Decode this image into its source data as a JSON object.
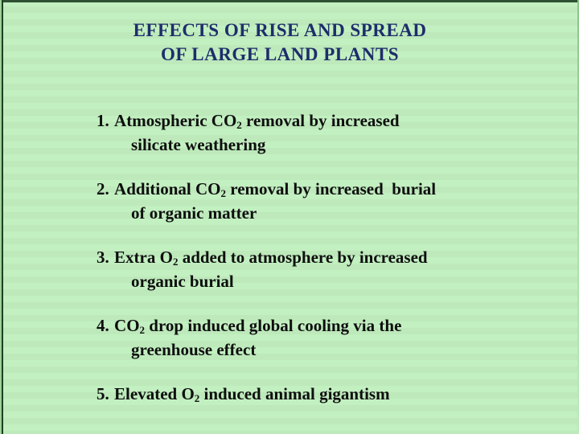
{
  "slide": {
    "title_line1": "EFFECTS OF RISE AND SPREAD",
    "title_line2": "OF LARGE LAND PLANTS",
    "colors": {
      "background": "#c1eebf",
      "top_border": "#2e4f32",
      "left_border_line": "#203e23",
      "title_text": "#1e2d6b",
      "body_text": "#0e0e0e"
    }
  },
  "items": [
    {
      "num": "1.",
      "pre": "Atmospheric CO",
      "sub": "2",
      "post": " removal by increased",
      "line2": "silicate weathering"
    },
    {
      "num": "2.",
      "pre": "Additional CO",
      "sub": "2",
      "post": " removal by increased  burial",
      "line2": "of organic matter"
    },
    {
      "num": "3.",
      "pre": "Extra O",
      "sub": "2",
      "post": " added to atmosphere by increased",
      "line2": "organic burial"
    },
    {
      "num": "4.",
      "pre": "CO",
      "sub": "2",
      "post": " drop induced global cooling via the",
      "line2": "greenhouse effect"
    },
    {
      "num": "5.",
      "pre": "Elevated O",
      "sub": "2",
      "post": " induced animal gigantism",
      "line2": ""
    }
  ]
}
